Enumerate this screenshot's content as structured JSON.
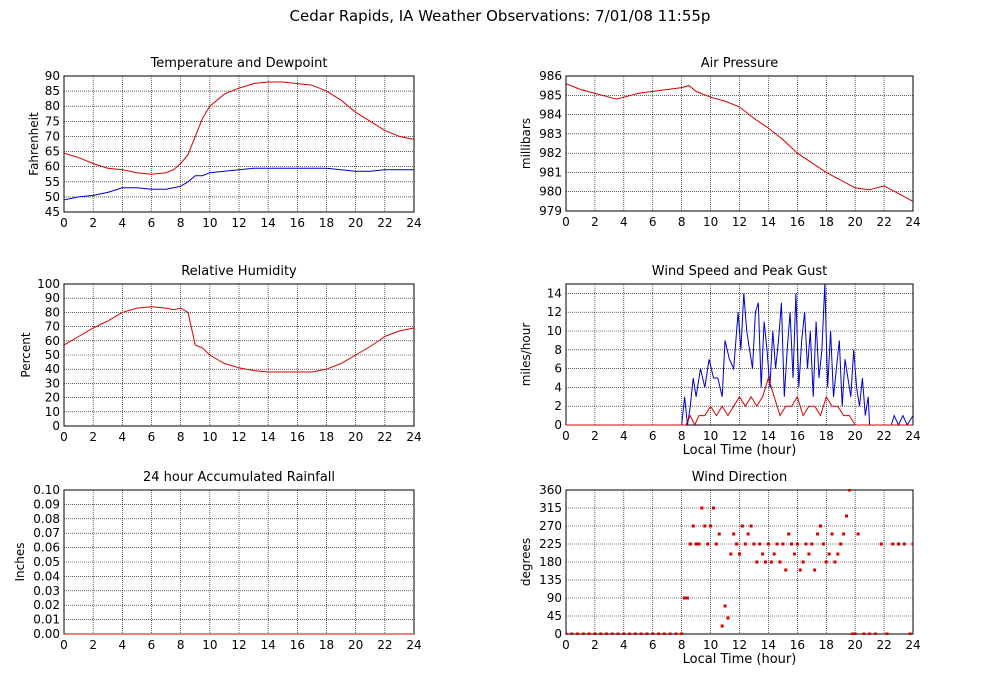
{
  "page_title": "Cedar Rapids, IA Weather Observations: 7/01/08 11:55p",
  "colors": {
    "primary_series": "#d40000",
    "secondary_series": "#0000c8",
    "grid": "#000000"
  },
  "chart_data": [
    {
      "id": "temp",
      "type": "line",
      "title": "Temperature and Dewpoint",
      "xlabel": "",
      "ylabel": "Fahrenheit",
      "xlim": [
        0,
        24
      ],
      "ylim": [
        45,
        90
      ],
      "xticks": [
        0,
        2,
        4,
        6,
        8,
        10,
        12,
        14,
        16,
        18,
        20,
        22,
        24
      ],
      "yticks": [
        45,
        50,
        55,
        60,
        65,
        70,
        75,
        80,
        85,
        90
      ],
      "grid": true,
      "series": [
        {
          "color": "#d40000",
          "style": "line",
          "x": [
            0,
            1,
            2,
            3,
            4,
            5,
            6,
            7,
            7.5,
            8,
            8.5,
            9,
            9.5,
            10,
            11,
            12,
            13,
            14,
            15,
            16,
            17,
            18,
            19,
            20,
            21,
            22,
            23,
            24
          ],
          "y": [
            64.5,
            63,
            61,
            59.5,
            59,
            58,
            57.5,
            58,
            59,
            61,
            64,
            70,
            76,
            80,
            84,
            86,
            87.5,
            88,
            88,
            87.5,
            87,
            85,
            82,
            78,
            75,
            72,
            70,
            69
          ]
        },
        {
          "color": "#0000c8",
          "style": "line",
          "x": [
            0,
            1,
            2,
            3,
            4,
            5,
            6,
            7,
            8,
            8.5,
            9,
            9.5,
            10,
            11,
            12,
            13,
            14,
            15,
            16,
            17,
            18,
            19,
            20,
            21,
            22,
            23,
            24
          ],
          "y": [
            49,
            50,
            50.5,
            51.5,
            53,
            53,
            52.5,
            52.5,
            53.5,
            55,
            57,
            57,
            58,
            58.5,
            59,
            59.5,
            59.5,
            59.5,
            59.5,
            59.5,
            59.5,
            59,
            58.5,
            58.5,
            59,
            59,
            59
          ]
        }
      ]
    },
    {
      "id": "press",
      "type": "line",
      "title": "Air Pressure",
      "xlabel": "",
      "ylabel": "millibars",
      "xlim": [
        0,
        24
      ],
      "ylim": [
        979,
        986
      ],
      "xticks": [
        0,
        2,
        4,
        6,
        8,
        10,
        12,
        14,
        16,
        18,
        20,
        22,
        24
      ],
      "yticks": [
        979,
        980,
        981,
        982,
        983,
        984,
        985,
        986
      ],
      "grid": true,
      "series": [
        {
          "color": "#d40000",
          "style": "line",
          "x": [
            0,
            1,
            2,
            3,
            3.5,
            4,
            5,
            6,
            7,
            8,
            8.5,
            9,
            10,
            11,
            12,
            13,
            14,
            15,
            16,
            17,
            18,
            19,
            20,
            21,
            22,
            23,
            24
          ],
          "y": [
            985.6,
            985.3,
            985.1,
            984.9,
            984.8,
            984.9,
            985.1,
            985.2,
            985.3,
            985.4,
            985.5,
            985.2,
            984.9,
            984.7,
            984.4,
            983.8,
            983.3,
            982.7,
            982.0,
            981.5,
            981.0,
            980.6,
            980.2,
            980.1,
            980.3,
            979.9,
            979.5
          ]
        }
      ]
    },
    {
      "id": "rh",
      "type": "line",
      "title": "Relative Humidity",
      "xlabel": "",
      "ylabel": "Percent",
      "xlim": [
        0,
        24
      ],
      "ylim": [
        0,
        100
      ],
      "xticks": [
        0,
        2,
        4,
        6,
        8,
        10,
        12,
        14,
        16,
        18,
        20,
        22,
        24
      ],
      "yticks": [
        0,
        10,
        20,
        30,
        40,
        50,
        60,
        70,
        80,
        90,
        100
      ],
      "grid": true,
      "series": [
        {
          "color": "#d40000",
          "style": "line",
          "x": [
            0,
            1,
            2,
            3,
            4,
            5,
            6,
            7,
            7.5,
            8,
            8.5,
            9,
            9.5,
            10,
            11,
            12,
            13,
            14,
            15,
            16,
            17,
            18,
            19,
            20,
            21,
            22,
            23,
            24
          ],
          "y": [
            57,
            63,
            69,
            74,
            80,
            83,
            84,
            83,
            82,
            83,
            80,
            57,
            55,
            50,
            44,
            41,
            39,
            38,
            38,
            38,
            38,
            40,
            44,
            50,
            56,
            63,
            67,
            69
          ]
        }
      ]
    },
    {
      "id": "wind",
      "type": "line",
      "title": "Wind Speed and Peak Gust",
      "xlabel": "Local Time (hour)",
      "ylabel": "miles/hour",
      "xlim": [
        0,
        24
      ],
      "ylim": [
        0,
        15
      ],
      "xticks": [
        0,
        2,
        4,
        6,
        8,
        10,
        12,
        14,
        16,
        18,
        20,
        22,
        24
      ],
      "yticks": [
        0,
        2,
        4,
        6,
        8,
        10,
        12,
        14
      ],
      "grid": true,
      "series": [
        {
          "color": "#0000c8",
          "style": "line",
          "x": [
            0,
            8.0,
            8.2,
            8.4,
            8.6,
            8.8,
            9.0,
            9.3,
            9.6,
            9.9,
            10.2,
            10.5,
            10.8,
            11.0,
            11.3,
            11.6,
            11.9,
            12.1,
            12.3,
            12.5,
            12.7,
            12.9,
            13.1,
            13.3,
            13.5,
            13.7,
            13.9,
            14.1,
            14.3,
            14.5,
            14.7,
            14.9,
            15.1,
            15.3,
            15.5,
            15.7,
            15.9,
            16.1,
            16.3,
            16.5,
            16.7,
            16.9,
            17.1,
            17.3,
            17.5,
            17.7,
            17.9,
            18.1,
            18.3,
            18.5,
            18.7,
            18.9,
            19.1,
            19.3,
            19.5,
            19.7,
            19.9,
            20.1,
            20.3,
            20.5,
            20.7,
            20.9,
            21.0,
            22.5,
            22.7,
            23.0,
            23.3,
            23.6,
            24
          ],
          "y": [
            0,
            0,
            3,
            0,
            2,
            5,
            3,
            6,
            4,
            7,
            5,
            5,
            3,
            9,
            7,
            6,
            12,
            8,
            14,
            10,
            8,
            6,
            12,
            13,
            4,
            11,
            8,
            4,
            10,
            6,
            9,
            13,
            3,
            8,
            12,
            5,
            14,
            4,
            9,
            12,
            6,
            10,
            3,
            11,
            5,
            8,
            15,
            4,
            10,
            3,
            6,
            9,
            2,
            7,
            5,
            3,
            8,
            4,
            2,
            5,
            1,
            3,
            0,
            0,
            1,
            0,
            1,
            0,
            1
          ]
        },
        {
          "color": "#d40000",
          "style": "line",
          "x": [
            0,
            8.0,
            8.3,
            8.6,
            8.9,
            9.2,
            9.6,
            10.0,
            10.4,
            10.8,
            11.2,
            11.6,
            12.0,
            12.4,
            12.8,
            13.2,
            13.6,
            14.0,
            14.4,
            14.8,
            15.2,
            15.6,
            16.0,
            16.4,
            16.8,
            17.2,
            17.6,
            18.0,
            18.4,
            18.8,
            19.2,
            19.6,
            20.0,
            24
          ],
          "y": [
            0,
            0,
            0,
            1,
            0,
            1,
            1,
            2,
            1,
            2,
            1,
            2,
            3,
            2,
            3,
            2,
            3,
            5,
            3,
            1,
            2,
            2,
            3,
            1,
            2,
            2,
            1,
            3,
            2,
            2,
            1,
            1,
            0,
            0
          ]
        }
      ]
    },
    {
      "id": "rain",
      "type": "line",
      "title": "24 hour Accumulated Rainfall",
      "xlabel": "",
      "ylabel": "Inches",
      "xlim": [
        0,
        24
      ],
      "ylim": [
        0,
        0.1
      ],
      "xticks": [
        0,
        2,
        4,
        6,
        8,
        10,
        12,
        14,
        16,
        18,
        20,
        22,
        24
      ],
      "yticks": [
        0.0,
        0.01,
        0.02,
        0.03,
        0.04,
        0.05,
        0.06,
        0.07,
        0.08,
        0.09,
        0.1
      ],
      "ytick_labels": [
        "0.00",
        "0.01",
        "0.02",
        "0.03",
        "0.04",
        "0.05",
        "0.06",
        "0.07",
        "0.08",
        "0.09",
        "0.10"
      ],
      "grid": true,
      "series": [
        {
          "color": "#d40000",
          "style": "line",
          "x": [
            0,
            24
          ],
          "y": [
            0,
            0
          ]
        }
      ]
    },
    {
      "id": "wdir",
      "type": "scatter",
      "title": "Wind Direction",
      "xlabel": "Local Time (hour)",
      "ylabel": "degrees",
      "xlim": [
        0,
        24
      ],
      "ylim": [
        0,
        360
      ],
      "xticks": [
        0,
        2,
        4,
        6,
        8,
        10,
        12,
        14,
        16,
        18,
        20,
        22,
        24
      ],
      "yticks": [
        0,
        45,
        90,
        135,
        180,
        225,
        270,
        315,
        360
      ],
      "grid": true,
      "series": [
        {
          "color": "#d40000",
          "style": "scatter",
          "x": [
            0,
            0.4,
            0.8,
            1.2,
            1.6,
            2,
            2.4,
            2.8,
            3.2,
            3.6,
            4,
            4.4,
            4.8,
            5.2,
            5.6,
            6,
            6.4,
            6.8,
            7.2,
            7.6,
            8,
            8.2,
            8.4,
            8.6,
            8.8,
            9,
            9.2,
            9.4,
            9.6,
            9.8,
            10,
            10.2,
            10.4,
            10.6,
            10.8,
            11,
            11.2,
            11.4,
            11.6,
            11.8,
            12,
            12.2,
            12.4,
            12.6,
            12.8,
            13,
            13.2,
            13.4,
            13.6,
            13.8,
            14,
            14.2,
            14.4,
            14.6,
            14.8,
            15,
            15.2,
            15.4,
            15.6,
            15.8,
            16,
            16.2,
            16.4,
            16.6,
            16.8,
            17,
            17.2,
            17.4,
            17.6,
            17.8,
            18,
            18.2,
            18.4,
            18.6,
            18.8,
            19,
            19.2,
            19.4,
            19.6,
            19.8,
            20,
            20.2,
            20.6,
            21,
            21.4,
            21.8,
            22.2,
            22.6,
            23,
            23.4,
            23.8,
            24
          ],
          "y": [
            0,
            0,
            0,
            0,
            0,
            0,
            0,
            0,
            0,
            0,
            0,
            0,
            0,
            0,
            0,
            0,
            0,
            0,
            0,
            0,
            0,
            90,
            90,
            225,
            270,
            225,
            225,
            315,
            270,
            225,
            270,
            315,
            225,
            250,
            20,
            70,
            40,
            200,
            250,
            225,
            200,
            270,
            225,
            250,
            270,
            225,
            180,
            225,
            200,
            180,
            225,
            180,
            200,
            225,
            180,
            225,
            160,
            250,
            225,
            200,
            225,
            160,
            180,
            225,
            200,
            225,
            160,
            250,
            270,
            225,
            180,
            200,
            250,
            180,
            200,
            225,
            250,
            295,
            360,
            0,
            0,
            250,
            0,
            0,
            0,
            225,
            0,
            225,
            225,
            225,
            0,
            225
          ]
        }
      ]
    }
  ]
}
